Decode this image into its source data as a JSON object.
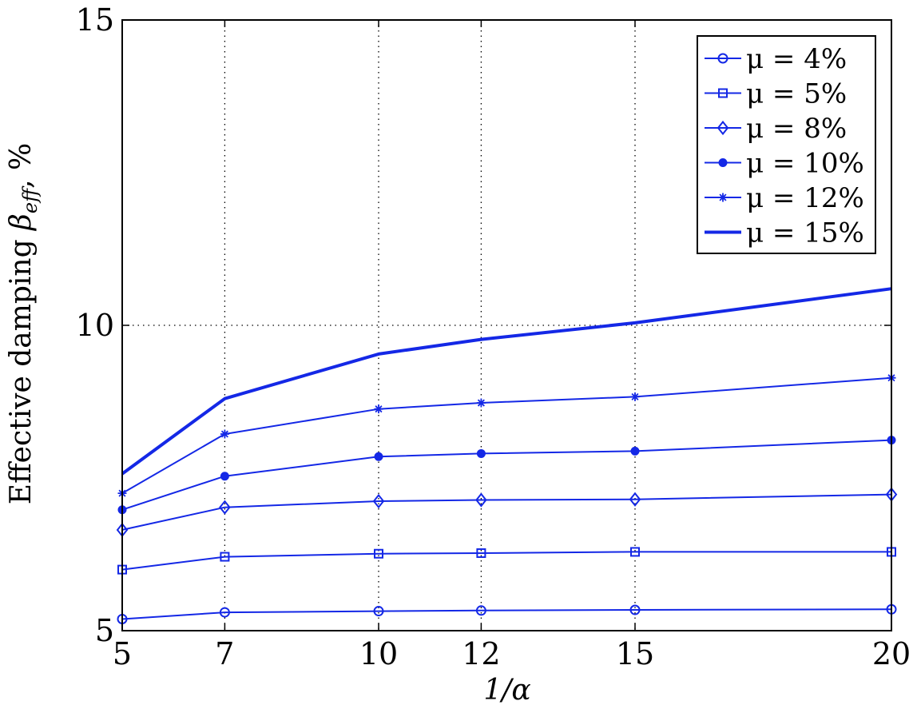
{
  "chart_data": {
    "type": "line",
    "x": [
      5,
      7,
      10,
      12,
      15,
      20
    ],
    "x_tick_labels": [
      "5",
      "7",
      "10",
      "12",
      "15",
      "20"
    ],
    "y_tick_values": [
      5,
      10,
      15
    ],
    "y_tick_labels": [
      "5",
      "10",
      "15"
    ],
    "xlim": [
      5,
      20
    ],
    "ylim": [
      5,
      15
    ],
    "xlabel": "1/α",
    "ylabel": "Effective damping β_eff, %",
    "ylabel_parts": {
      "prefix": "Effective damping ",
      "symbol": "β",
      "subscript": "eff",
      "suffix": ", %"
    },
    "grid": "dotted at x ticks and y ticks",
    "legend_location": "top-right",
    "line_color": "#1428e6",
    "series": [
      {
        "name": "μ = 4%",
        "marker": "circle",
        "values": [
          5.19,
          5.3,
          5.32,
          5.33,
          5.34,
          5.35
        ]
      },
      {
        "name": "μ = 5%",
        "marker": "square",
        "values": [
          6.0,
          6.21,
          6.26,
          6.27,
          6.29,
          6.29
        ]
      },
      {
        "name": "μ = 8%",
        "marker": "diamond",
        "values": [
          6.65,
          7.02,
          7.12,
          7.14,
          7.15,
          7.23
        ]
      },
      {
        "name": "μ = 10%",
        "marker": "filled-circle",
        "values": [
          6.98,
          7.53,
          7.85,
          7.9,
          7.94,
          8.12
        ]
      },
      {
        "name": "μ = 12%",
        "marker": "asterisk",
        "values": [
          7.25,
          8.22,
          8.63,
          8.73,
          8.83,
          9.14
        ]
      },
      {
        "name": "μ = 15%",
        "marker": "none",
        "values": [
          7.57,
          8.8,
          9.53,
          9.77,
          10.04,
          10.6
        ]
      }
    ]
  }
}
